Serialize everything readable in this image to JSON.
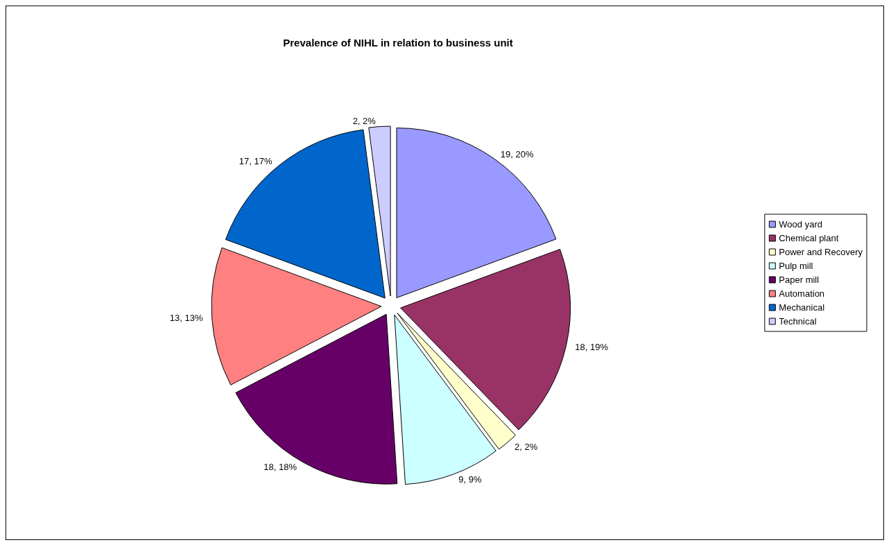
{
  "chart_data": {
    "type": "pie",
    "title": "Prevalence of NIHL in relation to business unit",
    "categories": [
      "Wood yard",
      "Chemical plant",
      "Power and Recovery",
      "Pulp mill",
      "Paper mill",
      "Automation",
      "Mechanical",
      "Technical"
    ],
    "values": [
      19,
      18,
      2,
      9,
      18,
      13,
      17,
      2
    ],
    "value_labels": [
      "19, 20%",
      "18, 19%",
      "2, 2%",
      "9, 9%",
      "18, 18%",
      "13, 13%",
      "17, 17%",
      "2, 2%"
    ],
    "colors": [
      "#9999ff",
      "#993366",
      "#ffffcc",
      "#ccffff",
      "#660066",
      "#ff8080",
      "#0066cc",
      "#ccccff"
    ],
    "legend": "right"
  }
}
